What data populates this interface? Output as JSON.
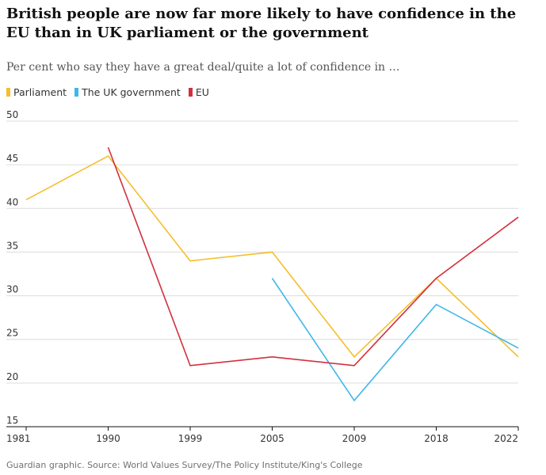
{
  "title": "British people are now far more likely to have confidence in the EU than in UK parliament or the government",
  "subtitle": "Per cent who say they have a great deal/quite a lot of confidence in …",
  "source": "Guardian graphic. Source: World Values Survey/The Policy Institute/King's College",
  "chart_data": {
    "type": "line",
    "categories": [
      "1981",
      "1990",
      "1999",
      "2005",
      "2009",
      "2018",
      "2022"
    ],
    "ylim": [
      15,
      50
    ],
    "yticks": [
      15,
      20,
      25,
      30,
      35,
      40,
      45,
      50
    ],
    "grid": true,
    "legend_position": "top-left",
    "series": [
      {
        "name": "Parliament",
        "color": "#f5be2c",
        "values": [
          41,
          46,
          34,
          35,
          23,
          32,
          23
        ]
      },
      {
        "name": "The UK government",
        "color": "#3fb7e8",
        "values": [
          null,
          null,
          null,
          32,
          18,
          29,
          24
        ]
      },
      {
        "name": "EU",
        "color": "#d2303d",
        "values": [
          null,
          47,
          22,
          23,
          22,
          32,
          39
        ]
      }
    ]
  }
}
